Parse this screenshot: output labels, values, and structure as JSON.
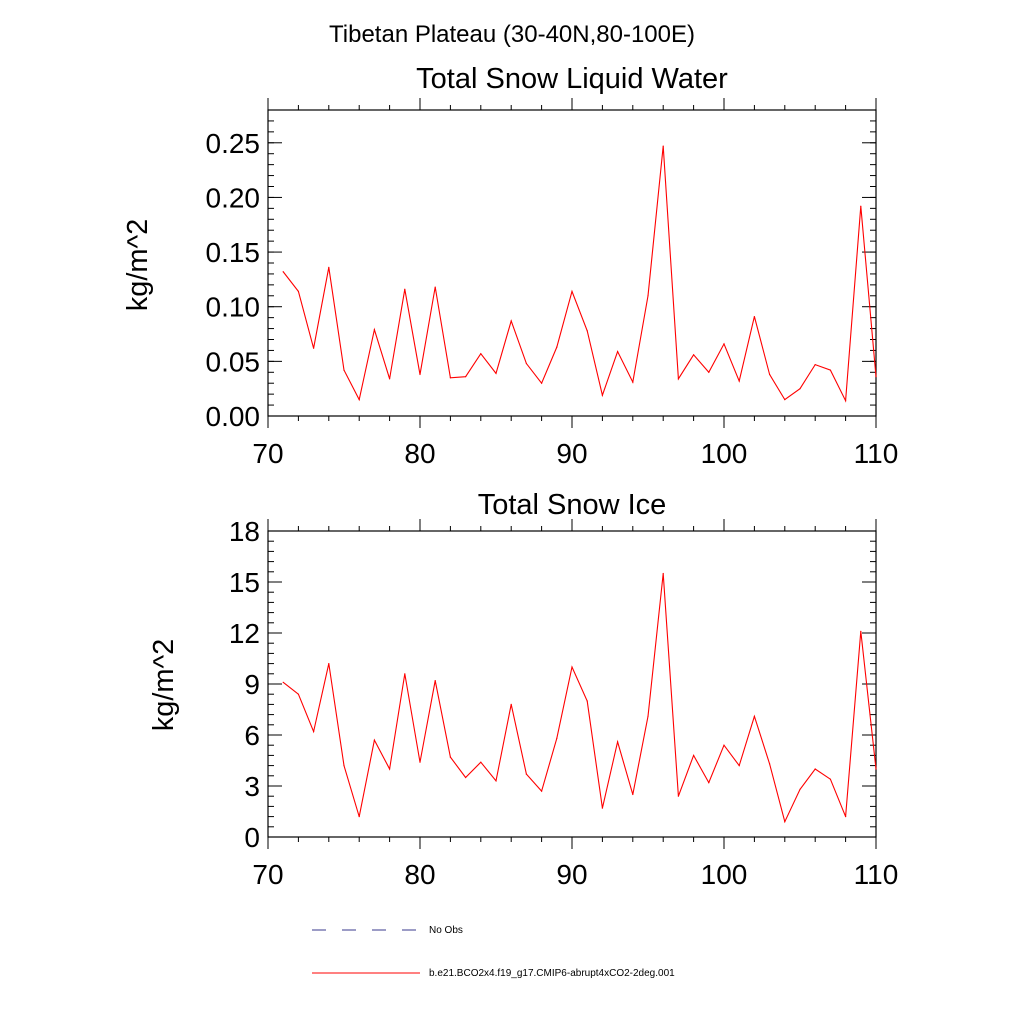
{
  "figure": {
    "main_title": "Tibetan Plateau (30-40N,80-100E)"
  },
  "legend": {
    "position": "bottom",
    "entries": [
      {
        "label": "No Obs",
        "style": "dashed",
        "color": "#3a3a8c"
      },
      {
        "label": "b.e21.BCO2x4.f19_g17.CMIP6-abrupt4xCO2-2deg.001",
        "style": "solid",
        "color": "#ff0000"
      }
    ]
  },
  "chart_data": [
    {
      "type": "line",
      "title": "Total Snow Liquid Water",
      "xlabel": "",
      "ylabel": "kg/m^2",
      "xlim": [
        70,
        110
      ],
      "ylim": [
        0,
        0.28
      ],
      "xticks": [
        70,
        80,
        90,
        100,
        110
      ],
      "xtick_labels": [
        "70",
        "80",
        "90",
        "100",
        "110"
      ],
      "yticks": [
        0,
        0.05,
        0.1,
        0.15,
        0.2,
        0.25
      ],
      "ytick_labels": [
        "0.00",
        "0.05",
        "0.10",
        "0.15",
        "0.20",
        "0.25"
      ],
      "grid": false,
      "series": [
        {
          "color": "#ff0000",
          "x": [
            71,
            72,
            73,
            74,
            75,
            76,
            77,
            78,
            79,
            80,
            81,
            82,
            83,
            84,
            85,
            86,
            87,
            88,
            89,
            90,
            91,
            92,
            93,
            94,
            95,
            96,
            97,
            98,
            99,
            100,
            101,
            102,
            103,
            104,
            105,
            106,
            107,
            108,
            109,
            110
          ],
          "values": [
            0.132,
            0.114,
            0.062,
            0.136,
            0.042,
            0.015,
            0.079,
            0.034,
            0.116,
            0.038,
            0.118,
            0.035,
            0.036,
            0.057,
            0.039,
            0.087,
            0.048,
            0.03,
            0.063,
            0.114,
            0.078,
            0.019,
            0.059,
            0.031,
            0.11,
            0.247,
            0.034,
            0.056,
            0.04,
            0.066,
            0.032,
            0.091,
            0.038,
            0.015,
            0.025,
            0.047,
            0.042,
            0.014,
            0.192,
            0.036
          ]
        }
      ]
    },
    {
      "type": "line",
      "title": "Total Snow Ice",
      "xlabel": "",
      "ylabel": "kg/m^2",
      "xlim": [
        70,
        110
      ],
      "ylim": [
        0,
        18
      ],
      "xticks": [
        70,
        80,
        90,
        100,
        110
      ],
      "xtick_labels": [
        "70",
        "80",
        "90",
        "100",
        "110"
      ],
      "yticks": [
        0,
        3,
        6,
        9,
        12,
        15,
        18
      ],
      "ytick_labels": [
        "0",
        "3",
        "6",
        "9",
        "12",
        "15",
        "18"
      ],
      "grid": false,
      "series": [
        {
          "color": "#ff0000",
          "x": [
            71,
            72,
            73,
            74,
            75,
            76,
            77,
            78,
            79,
            80,
            81,
            82,
            83,
            84,
            85,
            86,
            87,
            88,
            89,
            90,
            91,
            92,
            93,
            94,
            95,
            96,
            97,
            98,
            99,
            100,
            101,
            102,
            103,
            104,
            105,
            106,
            107,
            108,
            109,
            110
          ],
          "values": [
            9.1,
            8.4,
            6.2,
            10.2,
            4.2,
            1.2,
            5.7,
            4.0,
            9.6,
            4.4,
            9.2,
            4.7,
            3.5,
            4.4,
            3.3,
            7.8,
            3.7,
            2.7,
            5.8,
            10.0,
            8.0,
            1.7,
            5.6,
            2.5,
            7.1,
            15.5,
            2.4,
            4.8,
            3.2,
            5.4,
            4.2,
            7.1,
            4.3,
            0.9,
            2.8,
            4.0,
            3.4,
            1.2,
            12.1,
            4.0
          ]
        }
      ]
    }
  ]
}
